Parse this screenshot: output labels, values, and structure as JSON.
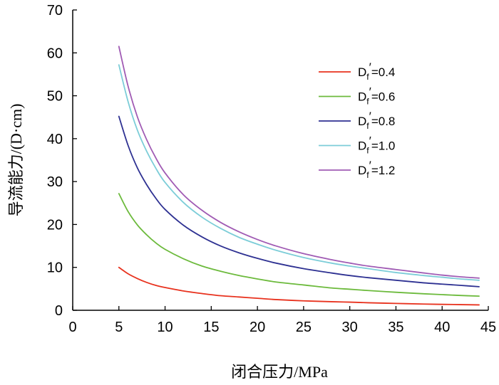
{
  "chart_data": {
    "type": "line",
    "title": "",
    "xlabel": "闭合压力/MPa",
    "ylabel": "导流能力/(D·cm)",
    "xlim": [
      0,
      45
    ],
    "ylim": [
      0,
      70
    ],
    "xticks": [
      0,
      5,
      10,
      15,
      20,
      25,
      30,
      35,
      40,
      45
    ],
    "yticks": [
      0,
      10,
      20,
      30,
      40,
      50,
      60,
      70
    ],
    "grid": false,
    "legend_position": "right",
    "x": [
      5,
      6,
      7,
      8,
      9,
      10,
      12,
      14,
      16,
      18,
      20,
      22,
      25,
      28,
      30,
      32,
      35,
      38,
      40,
      42,
      44
    ],
    "series": [
      {
        "name": "Df′=0.4",
        "legend": {
          "base": "D",
          "sub": "f",
          "mark": "′",
          "rest": "=0.4"
        },
        "color": "#e8321e",
        "values": [
          10.0,
          8.5,
          7.4,
          6.5,
          5.8,
          5.3,
          4.5,
          3.9,
          3.4,
          3.1,
          2.8,
          2.5,
          2.2,
          2.0,
          1.9,
          1.75,
          1.6,
          1.45,
          1.38,
          1.32,
          1.25
        ]
      },
      {
        "name": "Df′=0.6",
        "legend": {
          "base": "D",
          "sub": "f",
          "mark": "′",
          "rest": "=0.6"
        },
        "color": "#6cba3c",
        "values": [
          27.2,
          23.0,
          19.9,
          17.6,
          15.7,
          14.2,
          12.0,
          10.3,
          9.1,
          8.1,
          7.3,
          6.6,
          5.9,
          5.2,
          4.9,
          4.6,
          4.2,
          3.85,
          3.65,
          3.45,
          3.3
        ]
      },
      {
        "name": "Df′=0.8",
        "legend": {
          "base": "D",
          "sub": "f",
          "mark": "′",
          "rest": "=0.8"
        },
        "color": "#2e3192",
        "values": [
          45.2,
          38.4,
          33.2,
          29.3,
          26.1,
          23.5,
          19.8,
          17.1,
          15.0,
          13.4,
          12.1,
          11.0,
          9.7,
          8.7,
          8.1,
          7.6,
          7.0,
          6.4,
          6.1,
          5.8,
          5.5
        ]
      },
      {
        "name": "Df′=1.0",
        "legend": {
          "base": "D",
          "sub": "f",
          "mark": "′",
          "rest": "=1.0"
        },
        "color": "#7ccdd8",
        "values": [
          57.2,
          48.6,
          42.0,
          37.1,
          33.1,
          29.8,
          25.1,
          21.7,
          19.1,
          17.0,
          15.4,
          14.0,
          12.3,
          11.0,
          10.3,
          9.7,
          8.8,
          8.1,
          7.7,
          7.3,
          7.0
        ]
      },
      {
        "name": "Df′=1.2",
        "legend": {
          "base": "D",
          "sub": "f",
          "mark": "′",
          "rest": "=1.2"
        },
        "color": "#a05bb4",
        "values": [
          61.5,
          52.2,
          45.1,
          39.8,
          35.5,
          32.0,
          26.9,
          23.3,
          20.5,
          18.3,
          16.5,
          15.0,
          13.2,
          11.8,
          11.0,
          10.3,
          9.5,
          8.7,
          8.2,
          7.8,
          7.5
        ]
      }
    ]
  }
}
